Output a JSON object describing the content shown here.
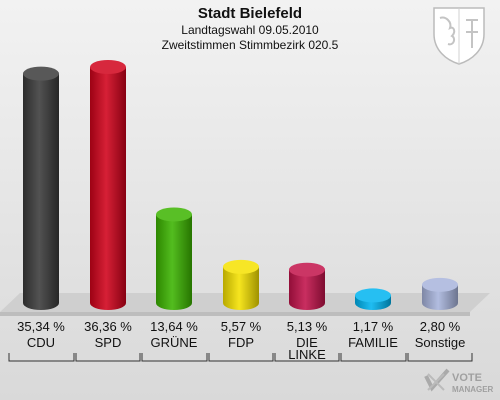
{
  "header": {
    "title": "Stadt Bielefeld",
    "subtitle": "Landtagswahl 09.05.2010",
    "subtitle2": "Zweitstimmen Stimmbezirk 020.5"
  },
  "logo_text": [
    "VOTE",
    "MANAGER"
  ],
  "chart_data": {
    "type": "bar",
    "categories": [
      "CDU",
      "SPD",
      "GRÜNE",
      "FDP",
      "DIE LINKE",
      "FAMILIE",
      "Sonstige"
    ],
    "values": [
      35.34,
      36.36,
      13.64,
      5.57,
      5.13,
      1.17,
      2.8
    ],
    "value_labels": [
      "35,34 %",
      "36,36 %",
      "13,64 %",
      "5,57 %",
      "5,13 %",
      "1,17 %",
      "2,80 %"
    ],
    "colors": [
      "#3a3a3a",
      "#d0021b",
      "#3cb400",
      "#f5e100",
      "#c2124a",
      "#00b4f0",
      "#a8b4dc"
    ],
    "ylim": [
      0,
      40
    ]
  }
}
